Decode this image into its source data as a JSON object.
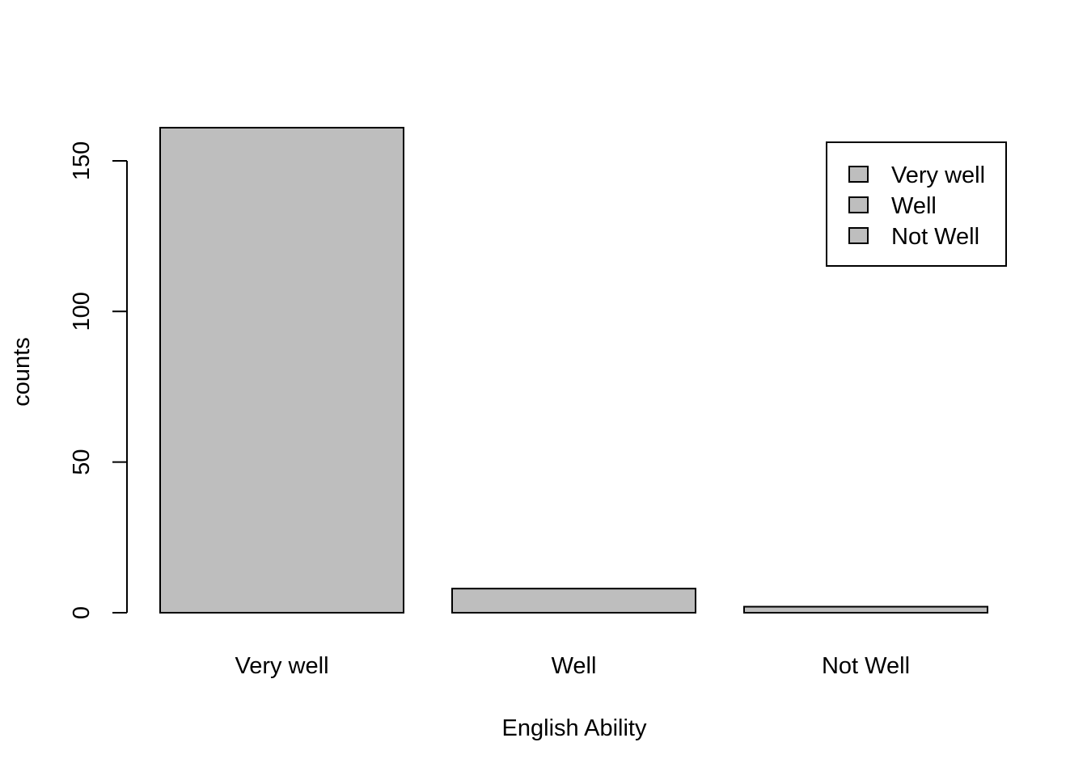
{
  "chart_data": {
    "type": "bar",
    "title": "",
    "xlabel": "English Ability",
    "ylabel": "counts",
    "categories": [
      "Very well",
      "Well",
      "Not Well"
    ],
    "values": [
      161,
      8,
      2
    ],
    "ylim": [
      0,
      161
    ],
    "y_ticks": [
      0,
      50,
      100,
      150
    ],
    "grid": false,
    "legend": {
      "position": "top-right",
      "entries": [
        "Very well",
        "Well",
        "Not Well"
      ]
    },
    "colors": {
      "bar_fill": "#bebebe",
      "bar_stroke": "#000000",
      "axis": "#000000",
      "background": "#ffffff"
    }
  }
}
